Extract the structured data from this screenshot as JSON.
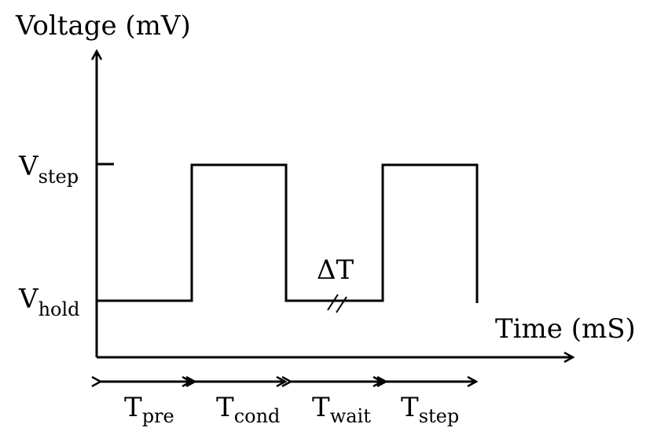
{
  "y_axis": {
    "label": "Voltage (mV)"
  },
  "x_axis": {
    "label": "Time (mS)"
  },
  "levels": {
    "step": {
      "main": "V",
      "sub": "step"
    },
    "hold": {
      "main": "V",
      "sub": "hold"
    }
  },
  "gap_marker": "ΔT",
  "intervals": [
    {
      "main": "T",
      "sub": "pre"
    },
    {
      "main": "T",
      "sub": "cond"
    },
    {
      "main": "T",
      "sub": "wait"
    },
    {
      "main": "T",
      "sub": "step"
    }
  ]
}
